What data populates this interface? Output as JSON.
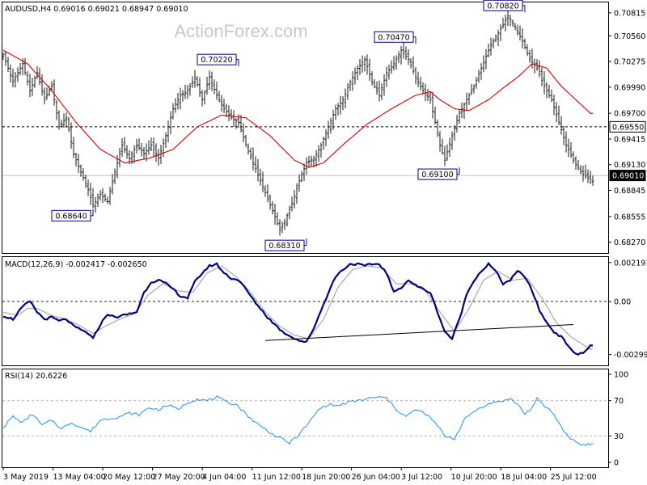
{
  "price_panel": {
    "header": "AUDUSD,H4  0.69016 0.69021 0.68947 0.69010",
    "watermark": "ActionForex.com"
  },
  "macd_panel": {
    "header": "MACD(12,26,9) -0.002417 -0.002650"
  },
  "rsi_panel": {
    "header": "RSI(14) 20.6226"
  },
  "colors": {
    "price_bars": "#1a1a1a",
    "moving_average": "#cc0000",
    "macd": "#000080",
    "signal": "#999999",
    "rsi": "#1e90ff",
    "current_price_box": "#000000",
    "annotation_border": "#000080"
  },
  "chart_data": [
    {
      "type": "ohlc",
      "title": "AUDUSD,H4",
      "ohlc_header": {
        "open": 0.69016,
        "high": 0.69021,
        "low": 0.68947,
        "close": 0.6901
      },
      "ylim": [
        0.6815,
        0.7093
      ],
      "y_ticks": [
        "0.70815",
        "0.70560",
        "0.70275",
        "0.69990",
        "0.69700",
        "0.69415",
        "0.69130",
        "0.68845",
        "0.68555",
        "0.68270"
      ],
      "x_ticks": [
        "3 May 2019",
        "13 May 04:00",
        "20 May 12:00",
        "27 May 20:00",
        "4 Jun 04:00",
        "11 Jun 12:00",
        "18 Jun 20:00",
        "26 Jun 04:00",
        "3 Jul 12:00",
        "10 Jul 20:00",
        "18 Jul 04:00",
        "25 Jul 12:00"
      ],
      "price_path": [
        [
          0,
          0.7035
        ],
        [
          4,
          0.7005
        ],
        [
          8,
          0.7025
        ],
        [
          11,
          0.6995
        ],
        [
          14,
          0.7015
        ],
        [
          17,
          0.6985
        ],
        [
          20,
          0.7
        ],
        [
          23,
          0.6955
        ],
        [
          26,
          0.6965
        ],
        [
          29,
          0.6925
        ],
        [
          32,
          0.6905
        ],
        [
          35,
          0.6885
        ],
        [
          37,
          0.6868
        ],
        [
          40,
          0.688
        ],
        [
          43,
          0.6872
        ],
        [
          46,
          0.6905
        ],
        [
          49,
          0.6935
        ],
        [
          52,
          0.692
        ],
        [
          55,
          0.6935
        ],
        [
          58,
          0.6925
        ],
        [
          61,
          0.6935
        ],
        [
          64,
          0.692
        ],
        [
          67,
          0.6945
        ],
        [
          70,
          0.6975
        ],
        [
          73,
          0.699
        ],
        [
          76,
          0.6995
        ],
        [
          79,
          0.701
        ],
        [
          82,
          0.6985
        ],
        [
          85,
          0.701
        ],
        [
          88,
          0.699
        ],
        [
          91,
          0.6975
        ],
        [
          94,
          0.6965
        ],
        [
          97,
          0.696
        ],
        [
          100,
          0.6935
        ],
        [
          103,
          0.6915
        ],
        [
          106,
          0.6895
        ],
        [
          109,
          0.6875
        ],
        [
          112,
          0.6855
        ],
        [
          114,
          0.684
        ],
        [
          116,
          0.685
        ],
        [
          119,
          0.687
        ],
        [
          122,
          0.6895
        ],
        [
          125,
          0.6915
        ],
        [
          128,
          0.692
        ],
        [
          131,
          0.6935
        ],
        [
          134,
          0.6955
        ],
        [
          137,
          0.6975
        ],
        [
          140,
          0.6985
        ],
        [
          143,
          0.7005
        ],
        [
          146,
          0.702
        ],
        [
          149,
          0.703
        ],
        [
          152,
          0.7005
        ],
        [
          155,
          0.699
        ],
        [
          158,
          0.7015
        ],
        [
          161,
          0.7025
        ],
        [
          164,
          0.704
        ],
        [
          167,
          0.703
        ],
        [
          170,
          0.701
        ],
        [
          173,
          0.6995
        ],
        [
          176,
          0.6985
        ],
        [
          178,
          0.696
        ],
        [
          180,
          0.6935
        ],
        [
          182,
          0.6918
        ],
        [
          185,
          0.6945
        ],
        [
          188,
          0.697
        ],
        [
          191,
          0.6985
        ],
        [
          194,
          0.7
        ],
        [
          197,
          0.702
        ],
        [
          200,
          0.704
        ],
        [
          203,
          0.7055
        ],
        [
          206,
          0.7068
        ],
        [
          208,
          0.7078
        ],
        [
          211,
          0.7065
        ],
        [
          214,
          0.705
        ],
        [
          217,
          0.703
        ],
        [
          220,
          0.702
        ],
        [
          223,
          0.7
        ],
        [
          226,
          0.6985
        ],
        [
          229,
          0.696
        ],
        [
          232,
          0.6935
        ],
        [
          235,
          0.6918
        ],
        [
          238,
          0.6905
        ],
        [
          241,
          0.6898
        ],
        [
          243,
          0.6895
        ]
      ],
      "moving_average_path": [
        [
          0,
          0.704
        ],
        [
          10,
          0.7025
        ],
        [
          20,
          0.6995
        ],
        [
          30,
          0.696
        ],
        [
          40,
          0.693
        ],
        [
          50,
          0.6915
        ],
        [
          60,
          0.692
        ],
        [
          70,
          0.693
        ],
        [
          80,
          0.6955
        ],
        [
          90,
          0.6968
        ],
        [
          100,
          0.6965
        ],
        [
          110,
          0.6945
        ],
        [
          120,
          0.6918
        ],
        [
          126,
          0.691
        ],
        [
          132,
          0.6915
        ],
        [
          140,
          0.6935
        ],
        [
          150,
          0.6958
        ],
        [
          160,
          0.6975
        ],
        [
          170,
          0.699
        ],
        [
          176,
          0.6994
        ],
        [
          180,
          0.6985
        ],
        [
          186,
          0.6975
        ],
        [
          192,
          0.6973
        ],
        [
          200,
          0.6985
        ],
        [
          206,
          0.6998
        ],
        [
          212,
          0.701
        ],
        [
          218,
          0.7025
        ],
        [
          224,
          0.702
        ],
        [
          230,
          0.7
        ],
        [
          236,
          0.6985
        ],
        [
          242,
          0.697
        ]
      ],
      "reference_levels": [
        {
          "value": 0.6955,
          "label": "0.69550",
          "style": "dashed"
        },
        {
          "value": 0.6901,
          "label": "0.69010",
          "style": "solid"
        }
      ],
      "annotations": [
        {
          "label": "0.68640",
          "x": 37,
          "y": 0.6864
        },
        {
          "label": "0.70220",
          "x": 97,
          "y": 0.7022
        },
        {
          "label": "0.68310",
          "x": 125,
          "y": 0.6831
        },
        {
          "label": "0.70470",
          "x": 170,
          "y": 0.7047
        },
        {
          "label": "0.69100",
          "x": 188,
          "y": 0.691
        },
        {
          "label": "0.70820",
          "x": 215,
          "y": 0.7082
        }
      ]
    },
    {
      "type": "line",
      "title": "MACD(12,26,9)",
      "macd_value": -0.002417,
      "signal_value": -0.00265,
      "ylim": [
        -0.0036,
        0.0025
      ],
      "y_ticks": [
        "0.002191",
        "0.00",
        "-0.002993"
      ],
      "macd_path": [
        [
          0,
          -0.0008
        ],
        [
          4,
          -0.001
        ],
        [
          8,
          -0.0003
        ],
        [
          11,
          0.0
        ],
        [
          14,
          -0.0006
        ],
        [
          17,
          -0.001
        ],
        [
          20,
          -0.0009
        ],
        [
          23,
          -0.0011
        ],
        [
          26,
          -0.001
        ],
        [
          29,
          -0.0014
        ],
        [
          32,
          -0.0016
        ],
        [
          35,
          -0.0018
        ],
        [
          37,
          -0.0021
        ],
        [
          40,
          -0.0013
        ],
        [
          43,
          -0.0007
        ],
        [
          46,
          -0.0009
        ],
        [
          49,
          -0.0008
        ],
        [
          52,
          -0.0007
        ],
        [
          55,
          -0.0006
        ],
        [
          58,
          0.0005
        ],
        [
          61,
          0.0011
        ],
        [
          64,
          0.0012
        ],
        [
          67,
          0.001
        ],
        [
          70,
          0.0007
        ],
        [
          73,
          0.0003
        ],
        [
          76,
          0.0002
        ],
        [
          79,
          0.0011
        ],
        [
          82,
          0.0016
        ],
        [
          85,
          0.002
        ],
        [
          88,
          0.0021
        ],
        [
          91,
          0.0016
        ],
        [
          94,
          0.0013
        ],
        [
          97,
          0.0012
        ],
        [
          100,
          0.0007
        ],
        [
          103,
          0.0001
        ],
        [
          106,
          -0.0004
        ],
        [
          109,
          -0.0009
        ],
        [
          112,
          -0.0013
        ],
        [
          115,
          -0.0017
        ],
        [
          119,
          -0.002
        ],
        [
          122,
          -0.0022
        ],
        [
          125,
          -0.0023
        ],
        [
          128,
          -0.0015
        ],
        [
          131,
          -0.0005
        ],
        [
          134,
          0.0005
        ],
        [
          137,
          0.0014
        ],
        [
          140,
          0.0018
        ],
        [
          143,
          0.0021
        ],
        [
          146,
          0.0021
        ],
        [
          149,
          0.002
        ],
        [
          152,
          0.0021
        ],
        [
          155,
          0.0021
        ],
        [
          158,
          0.0016
        ],
        [
          161,
          0.0005
        ],
        [
          164,
          0.0008
        ],
        [
          167,
          0.0012
        ],
        [
          170,
          0.0009
        ],
        [
          173,
          0.0007
        ],
        [
          176,
          0.0005
        ],
        [
          179,
          -0.0006
        ],
        [
          182,
          -0.0017
        ],
        [
          185,
          -0.0021
        ],
        [
          188,
          -0.001
        ],
        [
          191,
          0.0004
        ],
        [
          194,
          0.0012
        ],
        [
          197,
          0.0017
        ],
        [
          200,
          0.0021
        ],
        [
          203,
          0.0017
        ],
        [
          206,
          0.001
        ],
        [
          209,
          0.0012
        ],
        [
          212,
          0.0017
        ],
        [
          215,
          0.0014
        ],
        [
          218,
          0.0006
        ],
        [
          221,
          -0.0005
        ],
        [
          224,
          -0.0012
        ],
        [
          227,
          -0.0017
        ],
        [
          230,
          -0.002
        ],
        [
          233,
          -0.0025
        ],
        [
          236,
          -0.003
        ],
        [
          239,
          -0.0029
        ],
        [
          242,
          -0.0025
        ]
      ],
      "signal_path": [
        [
          0,
          -0.0006
        ],
        [
          6,
          -0.0008
        ],
        [
          10,
          -0.0004
        ],
        [
          14,
          -0.0004
        ],
        [
          20,
          -0.0008
        ],
        [
          26,
          -0.001
        ],
        [
          32,
          -0.0014
        ],
        [
          37,
          -0.0018
        ],
        [
          42,
          -0.0014
        ],
        [
          48,
          -0.001
        ],
        [
          54,
          -0.0007
        ],
        [
          60,
          0.0004
        ],
        [
          66,
          0.001
        ],
        [
          72,
          0.0006
        ],
        [
          78,
          0.0005
        ],
        [
          84,
          0.0016
        ],
        [
          90,
          0.002
        ],
        [
          96,
          0.0014
        ],
        [
          102,
          0.0005
        ],
        [
          108,
          -0.0006
        ],
        [
          114,
          -0.0014
        ],
        [
          120,
          -0.0019
        ],
        [
          126,
          -0.0021
        ],
        [
          132,
          -0.001
        ],
        [
          138,
          0.0008
        ],
        [
          144,
          0.0018
        ],
        [
          150,
          0.002
        ],
        [
          156,
          0.0019
        ],
        [
          162,
          0.001
        ],
        [
          168,
          0.001
        ],
        [
          174,
          0.0006
        ],
        [
          180,
          -0.0006
        ],
        [
          186,
          -0.0017
        ],
        [
          192,
          -0.0004
        ],
        [
          198,
          0.0012
        ],
        [
          204,
          0.0017
        ],
        [
          210,
          0.0012
        ],
        [
          216,
          0.0013
        ],
        [
          222,
          0.0002
        ],
        [
          228,
          -0.0012
        ],
        [
          234,
          -0.002
        ],
        [
          242,
          -0.0027
        ]
      ],
      "trendline": {
        "from": [
          108,
          -0.0022
        ],
        "to": [
          235,
          -0.0013
        ]
      }
    },
    {
      "type": "line",
      "title": "RSI(14)",
      "rsi_value": 20.6226,
      "ylim": [
        0,
        100
      ],
      "y_ticks": [
        "100",
        "70",
        "30",
        "0"
      ],
      "levels": [
        70,
        30
      ],
      "rsi_path": [
        [
          0,
          40
        ],
        [
          4,
          52
        ],
        [
          8,
          45
        ],
        [
          12,
          55
        ],
        [
          16,
          42
        ],
        [
          20,
          48
        ],
        [
          24,
          38
        ],
        [
          28,
          45
        ],
        [
          32,
          40
        ],
        [
          36,
          35
        ],
        [
          40,
          48
        ],
        [
          44,
          50
        ],
        [
          48,
          52
        ],
        [
          52,
          56
        ],
        [
          56,
          54
        ],
        [
          60,
          62
        ],
        [
          64,
          60
        ],
        [
          68,
          65
        ],
        [
          72,
          60
        ],
        [
          76,
          68
        ],
        [
          80,
          72
        ],
        [
          84,
          70
        ],
        [
          88,
          74
        ],
        [
          92,
          68
        ],
        [
          96,
          66
        ],
        [
          100,
          55
        ],
        [
          104,
          45
        ],
        [
          108,
          38
        ],
        [
          112,
          30
        ],
        [
          116,
          25
        ],
        [
          118,
          22
        ],
        [
          122,
          32
        ],
        [
          126,
          45
        ],
        [
          130,
          60
        ],
        [
          134,
          66
        ],
        [
          138,
          64
        ],
        [
          142,
          68
        ],
        [
          146,
          70
        ],
        [
          150,
          72
        ],
        [
          154,
          74
        ],
        [
          158,
          73
        ],
        [
          162,
          60
        ],
        [
          166,
          52
        ],
        [
          170,
          60
        ],
        [
          174,
          55
        ],
        [
          178,
          45
        ],
        [
          182,
          30
        ],
        [
          186,
          27
        ],
        [
          190,
          48
        ],
        [
          194,
          58
        ],
        [
          198,
          64
        ],
        [
          202,
          68
        ],
        [
          206,
          70
        ],
        [
          209,
          72
        ],
        [
          212,
          66
        ],
        [
          215,
          55
        ],
        [
          218,
          62
        ],
        [
          220,
          72
        ],
        [
          223,
          64
        ],
        [
          226,
          58
        ],
        [
          229,
          45
        ],
        [
          232,
          32
        ],
        [
          235,
          25
        ],
        [
          238,
          20
        ],
        [
          242,
          21
        ]
      ]
    }
  ]
}
